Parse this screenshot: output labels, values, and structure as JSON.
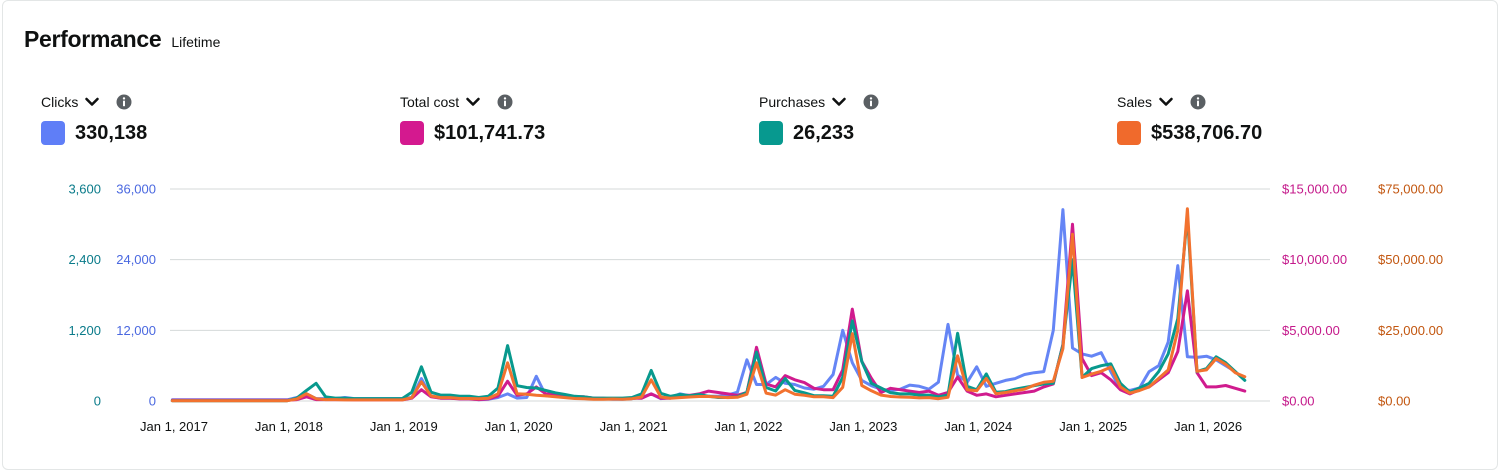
{
  "header": {
    "title": "Performance",
    "subtitle": "Lifetime"
  },
  "metrics": [
    {
      "name": "Clicks",
      "value": "330,138",
      "color": "#5f7ef7"
    },
    {
      "name": "Total cost",
      "value": "$101,741.73",
      "color": "#d4198f"
    },
    {
      "name": "Purchases",
      "value": "26,233",
      "color": "#07998f"
    },
    {
      "name": "Sales",
      "value": "$538,706.70",
      "color": "#f06a2c"
    }
  ],
  "icons": {
    "dropdown": "chevron-down-icon",
    "info": "info-icon"
  },
  "chart_data": {
    "type": "line",
    "grid": true,
    "x_start": "2016-12",
    "x_step": "month",
    "x_ticks": [
      "Jan 1, 2017",
      "Jan 1, 2018",
      "Jan 1, 2019",
      "Jan 1, 2020",
      "Jan 1, 2021",
      "Jan 1, 2022",
      "Jan 1, 2023",
      "Jan 1, 2024",
      "Jan 1, 2025",
      "Jan 1, 2026"
    ],
    "axes": {
      "left_outer": {
        "series": "Purchases",
        "ticks": [
          "0",
          "1,200",
          "2,400",
          "3,600"
        ],
        "max": 3600,
        "color": "#0a7b8a"
      },
      "left_inner": {
        "series": "Clicks",
        "ticks": [
          "0",
          "12,000",
          "24,000",
          "36,000"
        ],
        "max": 36000,
        "color": "#4a68e0"
      },
      "right_inner": {
        "series": "Total cost",
        "ticks": [
          "$0.00",
          "$5,000.00",
          "$10,000.00",
          "$15,000.00"
        ],
        "max": 15000,
        "color": "#c4188a"
      },
      "right_outer": {
        "series": "Sales",
        "ticks": [
          "$0.00",
          "$25,000.00",
          "$50,000.00",
          "$75,000.00"
        ],
        "max": 75000,
        "color": "#c2560f"
      }
    },
    "series": [
      {
        "name": "Clicks",
        "color": "#6585f5",
        "values": [
          200,
          200,
          200,
          200,
          200,
          200,
          200,
          200,
          200,
          200,
          200,
          200,
          200,
          600,
          1200,
          400,
          400,
          400,
          600,
          400,
          400,
          400,
          400,
          400,
          400,
          600,
          3800,
          800,
          500,
          500,
          400,
          400,
          200,
          300,
          600,
          1200,
          500,
          600,
          4200,
          900,
          800,
          700,
          700,
          600,
          500,
          400,
          300,
          300,
          400,
          600,
          1200,
          400,
          600,
          1200,
          900,
          900,
          800,
          800,
          1000,
          1500,
          7000,
          2800,
          2800,
          4000,
          3000,
          2800,
          2200,
          2000,
          2500,
          4500,
          12000,
          6500,
          3500,
          2600,
          2000,
          1800,
          2000,
          2700,
          2500,
          2000,
          3200,
          13000,
          4400,
          3200,
          5800,
          2500,
          3000,
          3500,
          3800,
          4500,
          4800,
          5000,
          12000,
          32500,
          9000,
          8000,
          7600,
          8200,
          5000,
          2000,
          1800,
          2200,
          5000,
          6000,
          10000,
          23000,
          7500,
          7400,
          7600,
          7000,
          6000,
          5000
        ]
      },
      {
        "name": "Total cost",
        "color": "#d01b8e",
        "values": [
          50,
          50,
          50,
          50,
          50,
          50,
          50,
          50,
          50,
          50,
          50,
          50,
          50,
          100,
          300,
          100,
          100,
          100,
          100,
          80,
          80,
          80,
          80,
          80,
          80,
          200,
          800,
          300,
          200,
          200,
          150,
          150,
          100,
          150,
          350,
          1400,
          400,
          500,
          1000,
          500,
          500,
          400,
          300,
          300,
          200,
          200,
          150,
          150,
          200,
          200,
          500,
          200,
          200,
          400,
          400,
          500,
          700,
          600,
          500,
          400,
          600,
          3800,
          1200,
          1000,
          1800,
          1500,
          1300,
          900,
          800,
          800,
          2200,
          6500,
          2800,
          1600,
          600,
          900,
          800,
          700,
          600,
          700,
          400,
          600,
          1700,
          700,
          400,
          500,
          300,
          400,
          500,
          600,
          700,
          1000,
          1200,
          4000,
          12500,
          3000,
          1800,
          2000,
          1500,
          800,
          500,
          800,
          1000,
          1500,
          2000,
          3500,
          7800,
          2000,
          1000,
          1000,
          1100,
          900,
          700
        ]
      },
      {
        "name": "Purchases",
        "color": "#08998d",
        "values": [
          5,
          5,
          5,
          5,
          5,
          5,
          5,
          5,
          5,
          5,
          5,
          5,
          5,
          50,
          180,
          300,
          70,
          50,
          50,
          40,
          40,
          40,
          40,
          40,
          40,
          150,
          580,
          150,
          100,
          100,
          80,
          80,
          60,
          80,
          220,
          940,
          260,
          230,
          220,
          180,
          140,
          110,
          80,
          70,
          50,
          50,
          50,
          50,
          60,
          120,
          520,
          130,
          80,
          110,
          90,
          110,
          80,
          60,
          60,
          70,
          150,
          830,
          230,
          170,
          380,
          180,
          140,
          90,
          90,
          80,
          400,
          1360,
          670,
          300,
          220,
          140,
          120,
          120,
          100,
          100,
          70,
          100,
          1150,
          250,
          190,
          460,
          150,
          160,
          200,
          230,
          260,
          290,
          300,
          950,
          2400,
          400,
          550,
          600,
          630,
          300,
          150,
          220,
          300,
          500,
          800,
          1400,
          3150,
          500,
          550,
          750,
          650,
          500,
          350
        ]
      },
      {
        "name": "Sales",
        "color": "#f2722f",
        "values": [
          100,
          100,
          100,
          100,
          100,
          100,
          100,
          100,
          100,
          100,
          100,
          100,
          100,
          700,
          2600,
          800,
          500,
          500,
          400,
          400,
          400,
          400,
          400,
          400,
          400,
          1200,
          6800,
          1800,
          1200,
          1200,
          900,
          900,
          800,
          1000,
          2500,
          13500,
          2600,
          2400,
          2000,
          1800,
          1500,
          1200,
          900,
          800,
          600,
          600,
          700,
          600,
          800,
          1400,
          7500,
          1400,
          1000,
          1200,
          1400,
          1600,
          1600,
          1400,
          1200,
          1300,
          2400,
          13500,
          2800,
          2100,
          4000,
          2400,
          2000,
          1500,
          1500,
          1200,
          4800,
          23800,
          5500,
          3600,
          2100,
          1600,
          1400,
          1300,
          1100,
          1200,
          800,
          1300,
          16000,
          4000,
          3600,
          8000,
          2600,
          3000,
          3600,
          4200,
          5600,
          6600,
          7000,
          18500,
          59000,
          8300,
          9500,
          10500,
          12000,
          5000,
          2800,
          3700,
          5000,
          8000,
          11000,
          25000,
          68000,
          10500,
          11000,
          15000,
          13000,
          10000,
          8600
        ]
      }
    ]
  }
}
